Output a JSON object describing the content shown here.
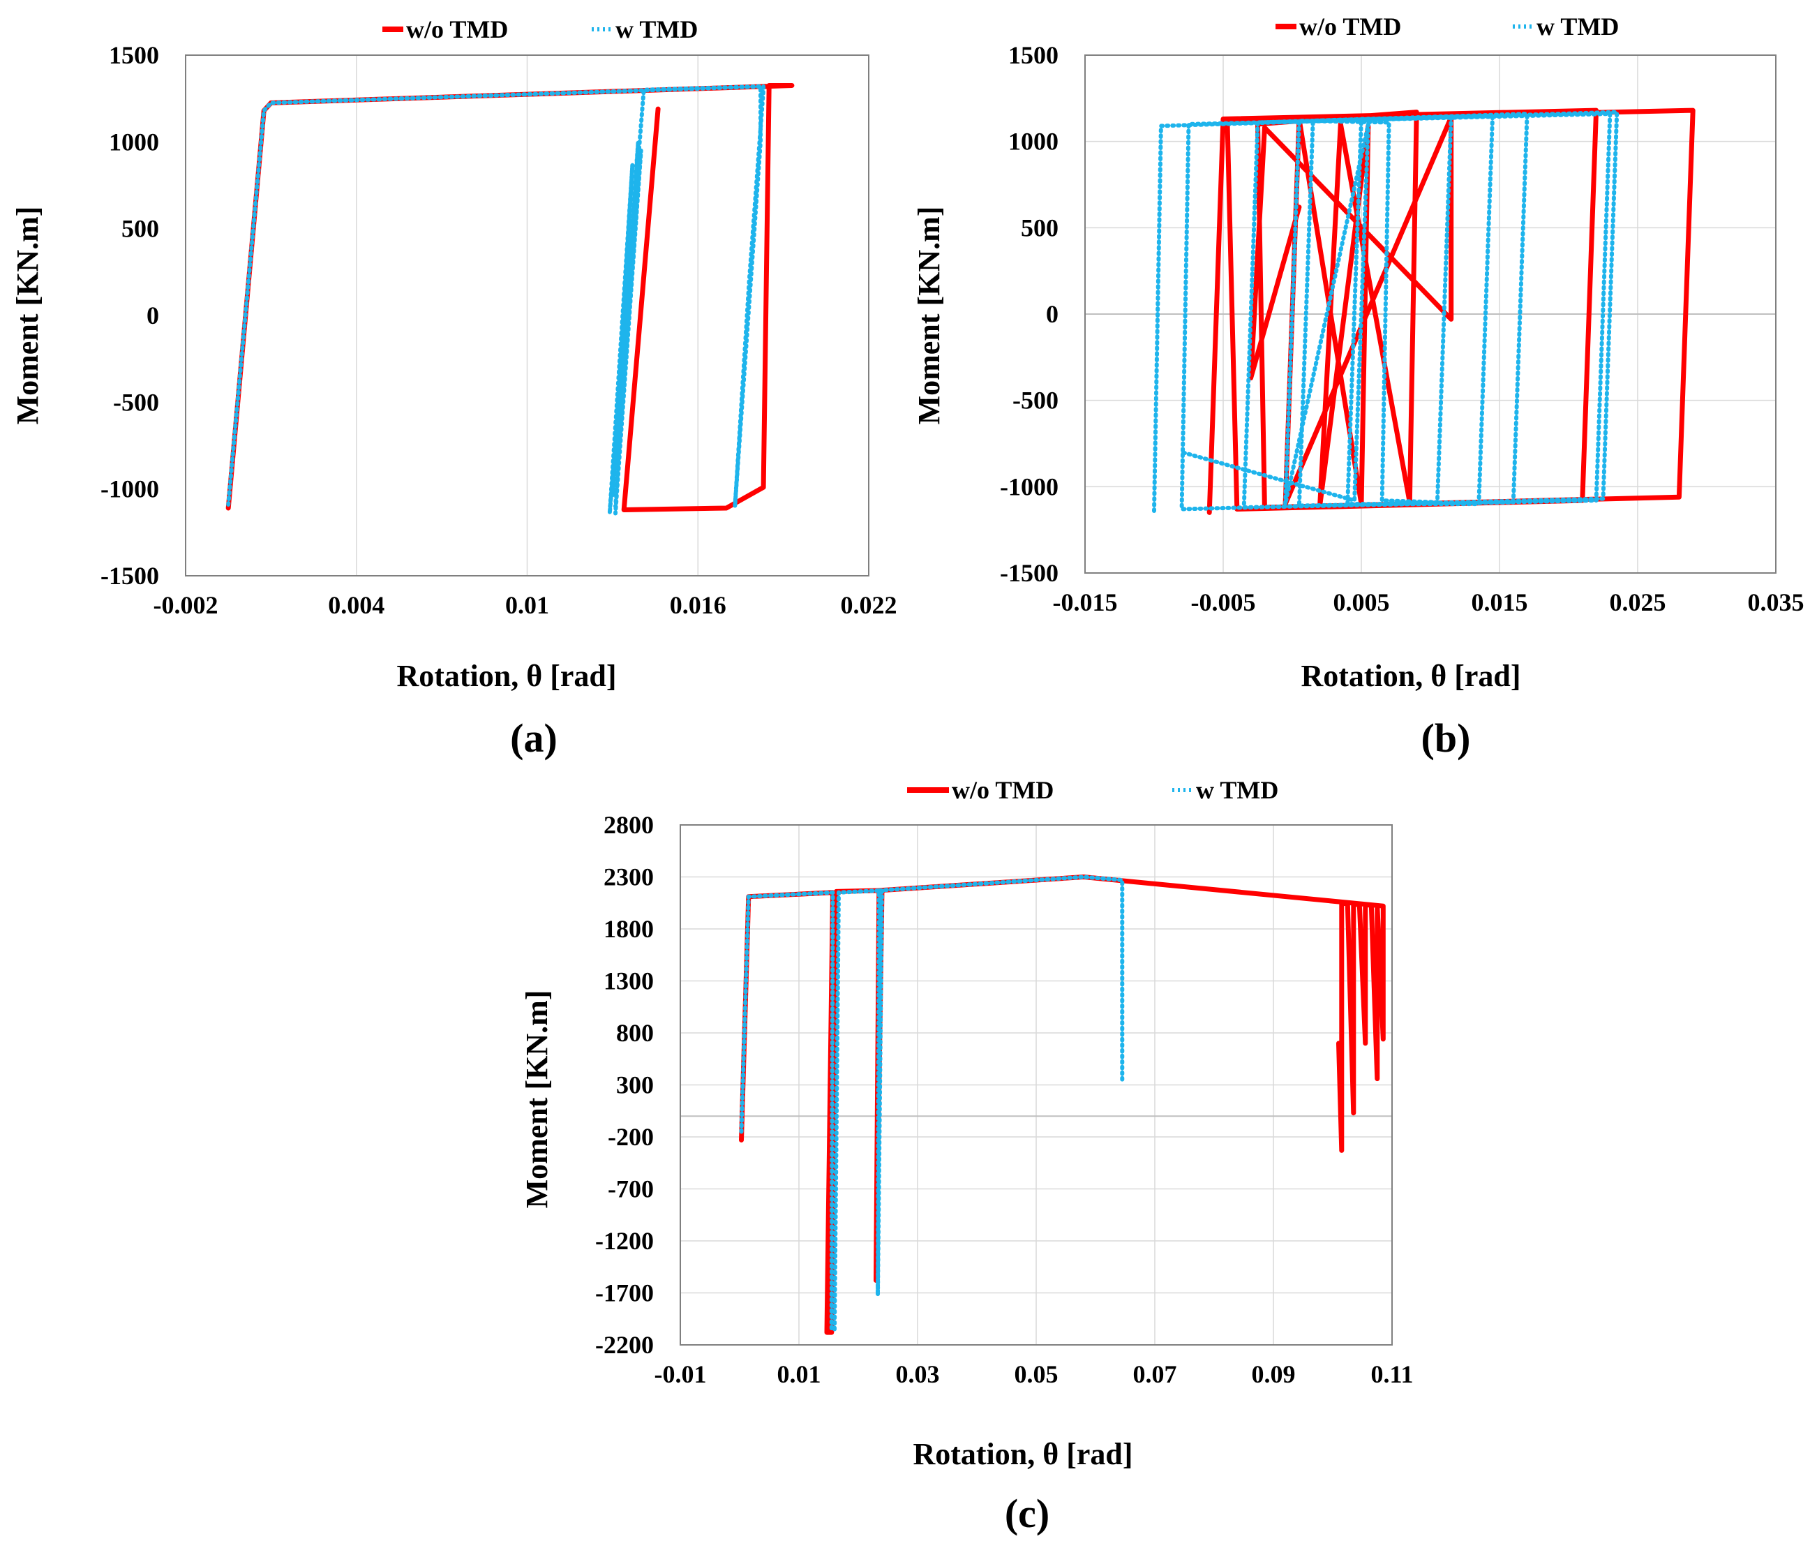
{
  "colors": {
    "without_tmd": "#ff0000",
    "with_tmd": "#1eb4ec",
    "grid": "#d9d9d9",
    "axis": "#7f7f7f"
  },
  "chart_data": [
    {
      "panel": "(a)",
      "type": "line",
      "xlabel": "Rotation, θ [rad]",
      "ylabel": "Moment [KN.m]",
      "xlim": [
        -0.002,
        0.022
      ],
      "ylim": [
        -1500,
        1500
      ],
      "xticks": [
        -0.002,
        0.004,
        0.01,
        0.016,
        0.022
      ],
      "xtick_labels": [
        "-0.002",
        "0.004",
        "0.01",
        "0.016",
        "0.022"
      ],
      "yticks": [
        -1500,
        -1000,
        -500,
        0,
        500,
        1000,
        1500
      ],
      "ytick_labels": [
        "-1500",
        "-1000",
        "-500",
        "0",
        "500",
        "1000",
        "1500"
      ],
      "grid": "vertical",
      "legend": [
        "w/o TMD",
        "w TMD"
      ],
      "series": [
        {
          "name": "w/o TMD",
          "style": "solid",
          "x": [
            -0.0005,
            0.00075,
            0.001,
            0.0193,
            0.0185,
            0.0183,
            0.017,
            0.0134,
            0.0146
          ],
          "y": [
            -1110,
            1180,
            1225,
            1325,
            1325,
            -990,
            -1110,
            -1120,
            1190
          ]
        },
        {
          "name": "w TMD",
          "style": "dotted",
          "x": [
            -0.0005,
            0.00075,
            0.001,
            0.0183,
            0.0183,
            0.0178,
            0.0173,
            0.0182,
            0.0182,
            0.0141,
            0.0129,
            0.0137,
            0.013,
            0.0139,
            0.0131,
            0.014,
            0.0131
          ],
          "y": [
            -1090,
            1180,
            1225,
            1320,
            1300,
            200,
            -1100,
            1000,
            1320,
            1300,
            -1140,
            870,
            -1040,
            1000,
            -1140,
            950,
            -1100
          ]
        }
      ]
    },
    {
      "panel": "(b)",
      "type": "line",
      "xlabel": "Rotation, θ [rad]",
      "ylabel": "Moment [KN.m]",
      "xlim": [
        -0.015,
        0.035
      ],
      "ylim": [
        -1500,
        1500
      ],
      "xticks": [
        -0.015,
        -0.005,
        0.005,
        0.015,
        0.025,
        0.035
      ],
      "xtick_labels": [
        "-0.015",
        "-0.005",
        "0.005",
        "0.015",
        "0.025",
        "0.035"
      ],
      "yticks": [
        -1500,
        -1000,
        -500,
        0,
        500,
        1000,
        1500
      ],
      "ytick_labels": [
        "-1500",
        "-1000",
        "-500",
        "0",
        "500",
        "1000",
        "1500"
      ],
      "grid": "both",
      "legend": [
        "w/o TMD",
        "w TMD"
      ],
      "series": [
        {
          "name": "w/o TMD",
          "style": "solid",
          "x": [
            -0.006,
            -0.005,
            0.022,
            0.021,
            -0.004,
            -0.0047,
            0.029,
            0.028,
            -0.002,
            -0.0025,
            0.009,
            0.0085,
            0.0035,
            0.002,
            0.0055,
            0.005,
            0.0005,
            -0.0005,
            0.0115,
            0.0115,
            -0.002,
            -0.003,
            0.0005
          ],
          "y": [
            -1150,
            1130,
            1180,
            -1080,
            -1130,
            1120,
            1180,
            -1060,
            -1120,
            1100,
            1170,
            -1090,
            1100,
            -1110,
            1090,
            -1100,
            1130,
            -1100,
            1140,
            -30,
            1080,
            -370,
            620
          ]
        },
        {
          "name": "w TMD",
          "style": "dotted",
          "x": [
            -0.01,
            -0.0095,
            0.0235,
            0.0225,
            -0.008,
            -0.0075,
            0.023,
            0.022,
            -0.0035,
            -0.0025,
            0.017,
            0.016,
            0.0005,
            0.0015,
            0.0145,
            0.0135,
            0.004,
            0.005,
            0.0115,
            0.0105,
            0.0065,
            0.007,
            0.0005,
            -0.0005,
            0.0055,
            0.0045,
            -0.008
          ],
          "y": [
            -1140,
            1090,
            1170,
            -1070,
            -1130,
            1100,
            1160,
            -1080,
            -1120,
            1110,
            1160,
            -1090,
            -1110,
            1120,
            1150,
            -1100,
            -1100,
            1130,
            1140,
            -1090,
            -1080,
            1110,
            1120,
            -1100,
            1100,
            -1080,
            -800
          ]
        }
      ]
    },
    {
      "panel": "(c)",
      "type": "line",
      "xlabel": "Rotation, θ [rad]",
      "ylabel": "Moment [KN.m]",
      "xlim": [
        -0.01,
        0.11
      ],
      "ylim": [
        -2200,
        2800
      ],
      "xticks": [
        -0.01,
        0.01,
        0.03,
        0.05,
        0.07,
        0.09,
        0.11
      ],
      "xtick_labels": [
        "-0.01",
        "0.01",
        "0.03",
        "0.05",
        "0.07",
        "0.09",
        "0.11"
      ],
      "yticks": [
        -2200,
        -1700,
        -1200,
        -700,
        -200,
        300,
        800,
        1300,
        1800,
        2300,
        2800
      ],
      "ytick_labels": [
        "-2200",
        "-1700",
        "-1200",
        "-700",
        "-200",
        "300",
        "800",
        "1300",
        "1800",
        "2300",
        "2800"
      ],
      "grid": "both",
      "legend": [
        "w/o TMD",
        "w TMD"
      ],
      "series": [
        {
          "name": "w/o TMD",
          "style": "solid",
          "x": [
            0.0003,
            0.0015,
            0.0157,
            0.0147,
            0.0155,
            0.0163,
            0.024,
            0.023,
            0.0235,
            0.058,
            0.1085,
            0.1085,
            0.1075,
            0.1075,
            0.1065,
            0.1055,
            0.1055,
            0.1045,
            0.1035,
            0.1035,
            0.1025,
            0.1015,
            0.1015,
            0.101
          ],
          "y": [
            -230,
            2110,
            2150,
            -2080,
            -2080,
            2160,
            2170,
            -1580,
            2170,
            2300,
            2020,
            740,
            2020,
            360,
            2030,
            2030,
            700,
            2030,
            2040,
            30,
            2040,
            2050,
            -330,
            700
          ]
        },
        {
          "name": "w TMD",
          "style": "dotted",
          "x": [
            0.0003,
            0.0015,
            0.0157,
            0.0155,
            0.016,
            0.0167,
            0.024,
            0.0233,
            0.0235,
            0.058,
            0.0645,
            0.0645,
            0.0645
          ],
          "y": [
            -150,
            2110,
            2150,
            -2050,
            -2050,
            2150,
            2170,
            -1720,
            2170,
            2300,
            2270,
            1800,
            350
          ]
        }
      ]
    }
  ]
}
